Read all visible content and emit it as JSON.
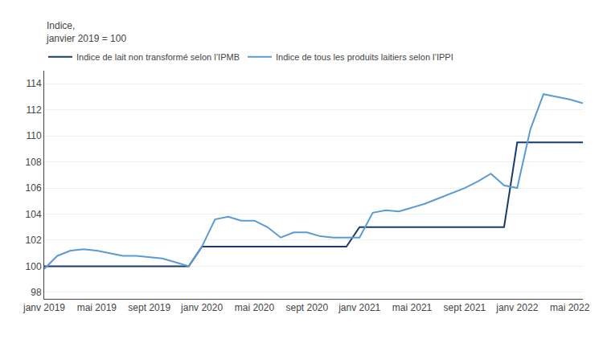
{
  "chart_data": {
    "type": "line",
    "ylabel": "Indice,\njanvier 2019 = 100",
    "categories": [
      "janv 2019",
      null,
      null,
      null,
      "mai 2019",
      null,
      null,
      null,
      "sept 2019",
      null,
      null,
      null,
      "janv 2020",
      null,
      null,
      null,
      "mai 2020",
      null,
      null,
      null,
      "sept 2020",
      null,
      null,
      null,
      "janv 2021",
      null,
      null,
      null,
      "mai 2021",
      null,
      null,
      null,
      "sept 2021",
      null,
      null,
      null,
      "janv 2022",
      null,
      null,
      null,
      "mai 2022",
      null
    ],
    "series": [
      {
        "name": "Indice de lait non transformé selon l’IPMB",
        "color": "#1A3A6B",
        "values": [
          100.0,
          100.0,
          100.0,
          100.0,
          100.0,
          100.0,
          100.0,
          100.0,
          100.0,
          100.0,
          100.0,
          100.0,
          101.5,
          101.5,
          101.5,
          101.5,
          101.5,
          101.5,
          101.5,
          101.5,
          101.5,
          101.5,
          101.5,
          101.5,
          103.0,
          103.0,
          103.0,
          103.0,
          103.0,
          103.0,
          103.0,
          103.0,
          103.0,
          103.0,
          103.0,
          103.0,
          109.5,
          109.5,
          109.5,
          109.5,
          109.5,
          109.5
        ]
      },
      {
        "name": "Indice de tous les produits laitiers selon l’IPPI",
        "color": "#5B9BD5",
        "values": [
          99.8,
          100.8,
          101.2,
          101.3,
          101.2,
          101.0,
          100.8,
          100.8,
          100.7,
          100.6,
          100.3,
          100.0,
          101.5,
          103.6,
          103.8,
          103.5,
          103.5,
          103.0,
          102.2,
          102.6,
          102.6,
          102.3,
          102.2,
          102.2,
          102.2,
          104.1,
          104.3,
          104.2,
          104.5,
          104.8,
          105.2,
          105.6,
          106.0,
          106.5,
          107.1,
          106.2,
          106.0,
          110.5,
          113.2,
          113.0,
          112.8,
          112.5
        ]
      }
    ],
    "ylim": [
      97.5,
      115.0
    ],
    "yticks": [
      98,
      100,
      102,
      104,
      106,
      108,
      110,
      112,
      114
    ],
    "grid": true,
    "legend": "upper left"
  }
}
